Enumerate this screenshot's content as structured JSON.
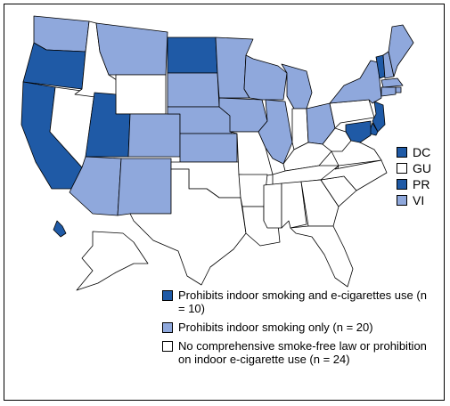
{
  "colors": {
    "dark": "#1f5aa6",
    "light": "#8fa8dc",
    "none": "#ffffff",
    "stroke": "#000000"
  },
  "territories": [
    {
      "code": "DC",
      "category": "dark"
    },
    {
      "code": "GU",
      "category": "none"
    },
    {
      "code": "PR",
      "category": "dark"
    },
    {
      "code": "VI",
      "category": "light"
    }
  ],
  "legend": [
    {
      "category": "dark",
      "label": "Prohibits indoor smoking and e-cigarettes use (n = 10)"
    },
    {
      "category": "light",
      "label": "Prohibits indoor smoking only (n = 20)"
    },
    {
      "category": "none",
      "label": "No comprehensive smoke-free law or prohibition on indoor e-cigarette use (n = 24)"
    }
  ]
}
